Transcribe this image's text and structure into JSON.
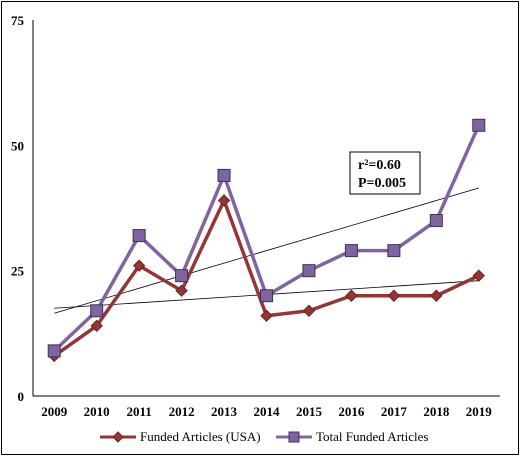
{
  "chart_data": {
    "type": "line",
    "title": "",
    "xlabel": "",
    "ylabel": "",
    "x": [
      "2009",
      "2010",
      "2011",
      "2012",
      "2013",
      "2014",
      "2015",
      "2016",
      "2017",
      "2018",
      "2019"
    ],
    "ylim": [
      0,
      75
    ],
    "yticks": [
      "0",
      "25",
      "50",
      "75"
    ],
    "grid": false,
    "legend_position": "bottom",
    "series": [
      {
        "name": "Funded Articles (USA)",
        "values": [
          8,
          14,
          26,
          21,
          39,
          16,
          17,
          20,
          20,
          20,
          24
        ],
        "color": "#943634",
        "marker": "diamond",
        "trend": [
          17.5,
          23.0
        ]
      },
      {
        "name": "Total Funded  Articles",
        "values": [
          9,
          17,
          32,
          24,
          44,
          20,
          25,
          29,
          29,
          35,
          54
        ],
        "color": "#8064a2",
        "marker": "square",
        "trend": [
          16.5,
          41.5
        ]
      }
    ],
    "annotation": {
      "r_text": "r²=0.60",
      "p_text": "P=0.005"
    }
  }
}
